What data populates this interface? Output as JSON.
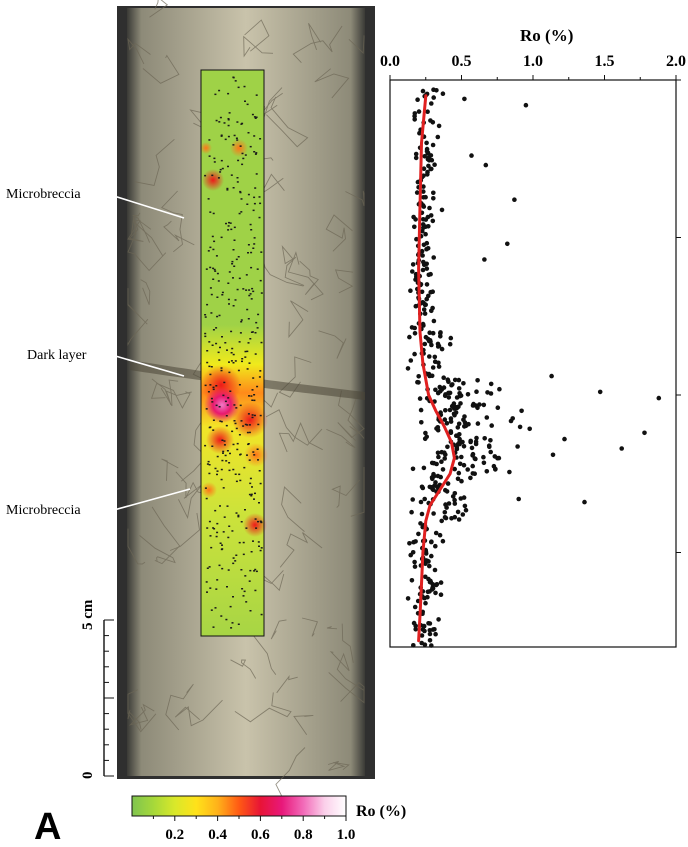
{
  "panel_label": "A",
  "core_annotations": [
    "Microbreccia",
    "Dark layer",
    "Microbreccia"
  ],
  "scale_bar": {
    "top_label": "5 cm",
    "bottom_label": "0"
  },
  "colorbar": {
    "label": "Ro (%)",
    "ticks": [
      "0.2",
      "0.4",
      "0.6",
      "0.8",
      "1.0"
    ],
    "stops": [
      "#7fc44f",
      "#a6d83a",
      "#d9e82a",
      "#ffe21a",
      "#ffb21a",
      "#ff5a14",
      "#e81436",
      "#e8187a",
      "#f26ab8",
      "#fbd0ea",
      "#ffffff"
    ]
  },
  "core_colors": {
    "host_rock": "#b8b199",
    "sleeve": "#2f2f2f",
    "points": "#1a1a1a"
  },
  "chart_data": {
    "type": "scatter",
    "title": "",
    "xlabel": "Ro (%)",
    "ylabel": "",
    "x_axis_position": "top",
    "xlim": [
      0.0,
      2.0
    ],
    "x_ticks": [
      "0.0",
      "0.5",
      "1.0",
      "1.5",
      "2.0"
    ],
    "ylim": [
      0,
      18
    ],
    "y_ticks_unlabeled": [
      0,
      5,
      10,
      15
    ],
    "grid": false,
    "point_color": "#111111",
    "trend_color": "#e02020",
    "trend_line": {
      "y": [
        0.5,
        2,
        4,
        6,
        8,
        9,
        10,
        10.5,
        11,
        11.5,
        12,
        12.5,
        13,
        13.5,
        14,
        15,
        16,
        17,
        17.8
      ],
      "x": [
        0.25,
        0.22,
        0.21,
        0.2,
        0.21,
        0.23,
        0.27,
        0.32,
        0.38,
        0.43,
        0.45,
        0.42,
        0.35,
        0.28,
        0.25,
        0.23,
        0.22,
        0.21,
        0.2
      ]
    },
    "points_extreme": [
      {
        "x": 0.95,
        "y": 0.8
      },
      {
        "x": 0.52,
        "y": 0.6
      },
      {
        "x": 0.67,
        "y": 2.7
      },
      {
        "x": 0.57,
        "y": 2.4
      },
      {
        "x": 0.87,
        "y": 3.8
      },
      {
        "x": 0.82,
        "y": 5.2
      },
      {
        "x": 0.66,
        "y": 5.7
      },
      {
        "x": 1.13,
        "y": 9.4
      },
      {
        "x": 1.47,
        "y": 9.9
      },
      {
        "x": 1.88,
        "y": 10.1
      },
      {
        "x": 1.78,
        "y": 11.2
      },
      {
        "x": 1.62,
        "y": 11.7
      },
      {
        "x": 1.22,
        "y": 11.4
      },
      {
        "x": 1.14,
        "y": 11.9
      },
      {
        "x": 1.36,
        "y": 13.4
      },
      {
        "x": 0.9,
        "y": 13.3
      },
      {
        "x": 0.92,
        "y": 10.5
      }
    ],
    "point_clusters": [
      {
        "y_range": [
          0.2,
          3
        ],
        "x_mean": 0.22,
        "x_spread": 0.06,
        "count": 45
      },
      {
        "y_range": [
          3,
          5
        ],
        "x_mean": 0.21,
        "x_spread": 0.05,
        "count": 35
      },
      {
        "y_range": [
          5,
          8
        ],
        "x_mean": 0.2,
        "x_spread": 0.05,
        "count": 60
      },
      {
        "y_range": [
          8,
          9.5
        ],
        "x_mean": 0.24,
        "x_spread": 0.09,
        "count": 40
      },
      {
        "y_range": [
          9.5,
          11
        ],
        "x_mean": 0.36,
        "x_spread": 0.18,
        "count": 80
      },
      {
        "y_range": [
          11,
          12.5
        ],
        "x_mean": 0.42,
        "x_spread": 0.2,
        "count": 75
      },
      {
        "y_range": [
          12.5,
          14
        ],
        "x_mean": 0.3,
        "x_spread": 0.13,
        "count": 55
      },
      {
        "y_range": [
          14,
          18
        ],
        "x_mean": 0.22,
        "x_spread": 0.07,
        "count": 90
      }
    ]
  }
}
